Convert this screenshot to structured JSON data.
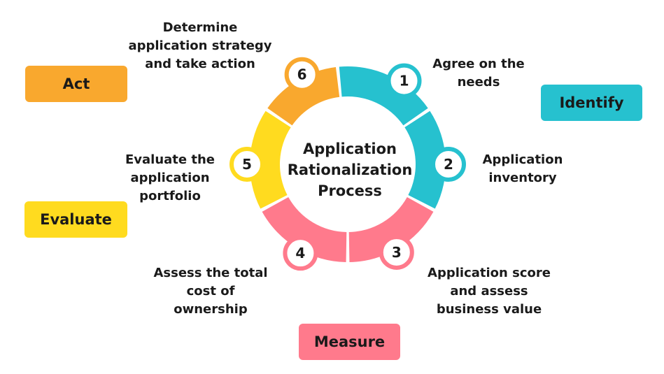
{
  "center": {
    "line1": "Application",
    "line2": "Rationalization",
    "line3": "Process"
  },
  "phases": {
    "act": "Act",
    "identify": "Identify",
    "evaluate": "Evaluate",
    "measure": "Measure"
  },
  "steps": [
    {
      "number": "1",
      "lines": [
        "Agree on the",
        "needs"
      ],
      "color": "#26C1CF"
    },
    {
      "number": "2",
      "lines": [
        "Application",
        "inventory"
      ],
      "color": "#26C1CF"
    },
    {
      "number": "3",
      "lines": [
        "Application score",
        "and assess",
        "business value"
      ],
      "color": "#FF7A8C"
    },
    {
      "number": "4",
      "lines": [
        "Assess the total",
        "cost of",
        "ownership"
      ],
      "color": "#FF7A8C"
    },
    {
      "number": "5",
      "lines": [
        "Evaluate the",
        "application",
        "portfolio"
      ],
      "color": "#FFDB1F"
    },
    {
      "number": "6",
      "lines": [
        "Determine",
        "application strategy",
        "and take action"
      ],
      "color": "#F9A82E"
    }
  ],
  "colors": {
    "identify": "#26C1CF",
    "measure": "#FF7A8C",
    "evaluate": "#FFDB1F",
    "act": "#F9A82E"
  }
}
